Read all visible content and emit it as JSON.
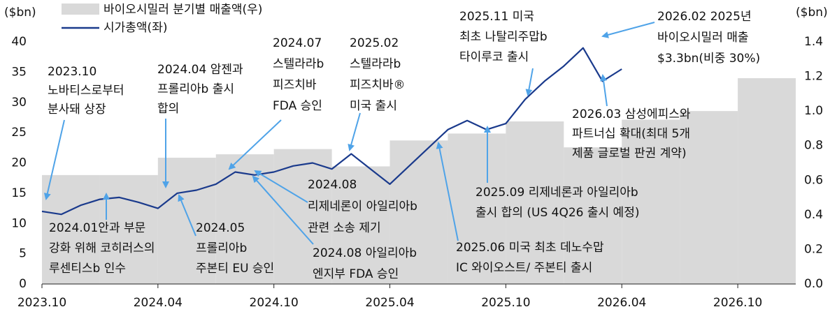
{
  "chart_data": {
    "type": "combo",
    "y_unit_left": "($bn)",
    "y_unit_right": "($bn)",
    "xlim": [
      "2023.10",
      "2027.01"
    ],
    "xticks": [
      "2023.10",
      "2024.04",
      "2024.10",
      "2025.04",
      "2025.10",
      "2026.04",
      "2026.10"
    ],
    "ylim": [
      0,
      40
    ],
    "yticks": [
      0,
      5,
      10,
      15,
      20,
      25,
      30,
      35,
      40
    ],
    "y2lim": [
      0,
      1.4
    ],
    "y2ticks": [
      {
        "value": 0,
        "label": "0.0"
      },
      0.2,
      0.4,
      0.6,
      0.8,
      {
        "value": 1,
        "label": "1.0"
      },
      1.2,
      1.4
    ],
    "legend": "top-left",
    "series": [
      {
        "name": "바이오시밀러 분기별 매출액(우)",
        "type": "step-area",
        "axis": "y2",
        "color": "#d9d9d9",
        "x": [
          "2023.10",
          "2024.01",
          "2024.04",
          "2024.07",
          "2024.10",
          "2025.01",
          "2025.04",
          "2025.07",
          "2025.10",
          "2026.01",
          "2026.04",
          "2026.07",
          "2026.10"
        ],
        "values": [
          0.63,
          0.63,
          0.73,
          0.75,
          0.78,
          0.68,
          0.83,
          0.87,
          0.94,
          0.79,
          0.95,
          1.0,
          1.19
        ]
      },
      {
        "name": "시가총액(좌)",
        "type": "line",
        "color": "#1a3a8c",
        "x": [
          "2023.10",
          "2023.11",
          "2023.12",
          "2024.01",
          "2024.02",
          "2024.03",
          "2024.04",
          "2024.05",
          "2024.06",
          "2024.07",
          "2024.08",
          "2024.09",
          "2024.10",
          "2024.11",
          "2024.12",
          "2025.01",
          "2025.02",
          "2025.03",
          "2025.04",
          "2025.05",
          "2025.06",
          "2025.07",
          "2025.08",
          "2025.09",
          "2025.10",
          "2025.11",
          "2025.12",
          "2026.01",
          "2026.02",
          "2026.03",
          "2026.04"
        ],
        "values": [
          12.0,
          11.5,
          13.0,
          14.0,
          14.3,
          13.5,
          12.5,
          15.0,
          15.5,
          16.5,
          18.5,
          18.0,
          18.5,
          19.5,
          20.0,
          19.0,
          21.5,
          19.0,
          16.5,
          19.5,
          22.5,
          25.5,
          27.0,
          25.5,
          26.5,
          30.5,
          33.5,
          36.0,
          39.0,
          33.5,
          35.5
        ]
      }
    ],
    "annotations": [
      [
        "2023.10",
        "노바티스로부터",
        "분사돼 상장"
      ],
      [
        "2024.04 암젠과",
        "프롤리아b 출시",
        "합의"
      ],
      [
        "2024.07",
        "스텔라라b",
        "피즈치바",
        "FDA 승인"
      ],
      [
        "2025.02",
        "스텔라라b",
        "피즈치바®",
        "미국 출시"
      ],
      [
        "2025.11 미국",
        "최초 나탈리주맙b",
        "타이루코 출시"
      ],
      [
        "2026.02 2025년",
        "바이오시밀러 매출",
        "$3.3bn(비중 30%)"
      ],
      [
        "2026.03 삼성에피스와",
        "파트너십 확대(최대 5개",
        "제품 글로벌 판권 계약)"
      ],
      [
        "2025.09 리제네론과 아일리아b",
        "출시 합의 (US 4Q26 출시 예정)"
      ],
      [
        "2025.06 미국 최초 데노수맙",
        "IC 와이오스트/ 주본티 출시"
      ],
      [
        "2024.08",
        "리제네론이 아일리아b",
        "관련 소송 제기"
      ],
      [
        "2024.08 아일리아b",
        "엔지부 FDA 승인"
      ],
      [
        "2024.05",
        "프롤리아b",
        "주본티 EU 승인"
      ],
      [
        "2024.01안과 부문",
        "강화 위해 코히러스의",
        "루센티스b 인수"
      ]
    ]
  }
}
